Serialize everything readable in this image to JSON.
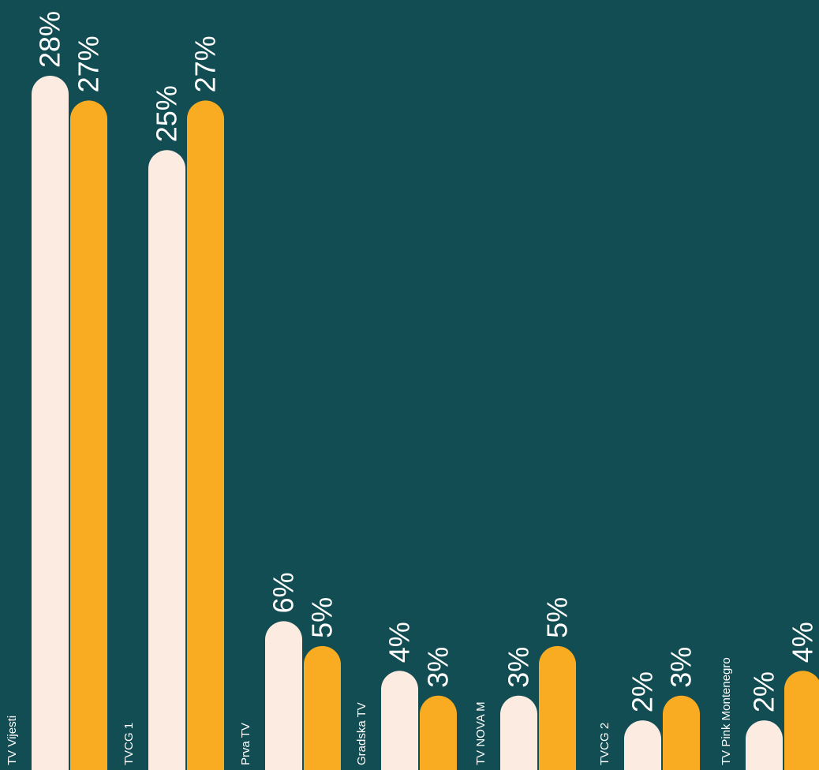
{
  "chart_data": {
    "type": "bar",
    "orientation": "vertical",
    "categories": [
      "TV Vijesti",
      "TVCG 1",
      "Prva TV",
      "Gradska TV",
      "TV NOVA M",
      "TVCG 2",
      "TV Pink Montenegro"
    ],
    "series": [
      {
        "values": [
          28,
          25,
          6,
          4,
          3,
          2,
          2
        ],
        "color": "#fbebe1"
      },
      {
        "values": [
          27,
          27,
          5,
          3,
          5,
          3,
          4
        ],
        "color": "#f9ac21"
      }
    ],
    "value_labels": [
      [
        "28%",
        "25%",
        "6%",
        "4%",
        "3%",
        "2%",
        "2%"
      ],
      [
        "27%",
        "27%",
        "5%",
        "3%",
        "5%",
        "3%",
        "4%"
      ]
    ],
    "label_text_color": "#ffffff",
    "background": "#124d53",
    "ylim": [
      0,
      28
    ],
    "grid": false,
    "legend": "none",
    "title": "",
    "xlabel": "",
    "ylabel": ""
  }
}
